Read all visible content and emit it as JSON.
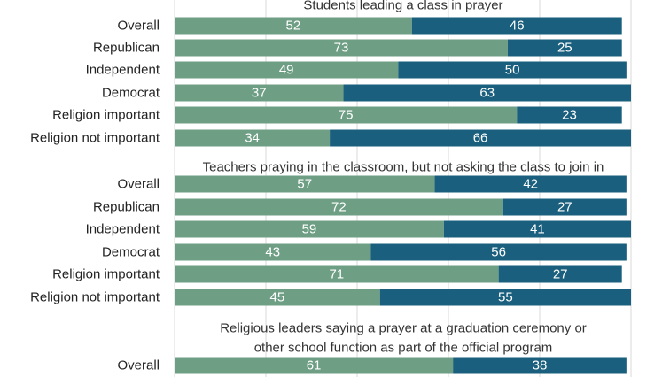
{
  "colors": {
    "support": "#6e9f84",
    "oppose": "#1a5f7d",
    "grid": "#d9d9d9"
  },
  "chart_data": {
    "type": "bar",
    "orientation": "horizontal",
    "stacked": true,
    "xlim": [
      0,
      100
    ],
    "panels": [
      {
        "title_lines": [
          "Students leading a class in prayer"
        ],
        "categories": [
          "Overall",
          "Republican",
          "Independent",
          "Democrat",
          "Religion important",
          "Religion not important"
        ],
        "series": [
          {
            "values": [
              52,
              73,
              49,
              37,
              75,
              34
            ]
          },
          {
            "values": [
              46,
              25,
              50,
              63,
              23,
              66
            ]
          }
        ]
      },
      {
        "title_lines": [
          "Teachers praying in the classroom, but not asking the class to join in"
        ],
        "categories": [
          "Overall",
          "Republican",
          "Independent",
          "Democrat",
          "Religion important",
          "Religion not important"
        ],
        "series": [
          {
            "values": [
              57,
              72,
              59,
              43,
              71,
              45
            ]
          },
          {
            "values": [
              42,
              27,
              41,
              56,
              27,
              55
            ]
          }
        ]
      },
      {
        "title_lines": [
          "Religious leaders saying a prayer at a graduation ceremony or",
          "other school function as part of the official program"
        ],
        "categories": [
          "Overall"
        ],
        "series": [
          {
            "values": [
              61
            ]
          },
          {
            "values": [
              38
            ]
          }
        ]
      }
    ]
  }
}
